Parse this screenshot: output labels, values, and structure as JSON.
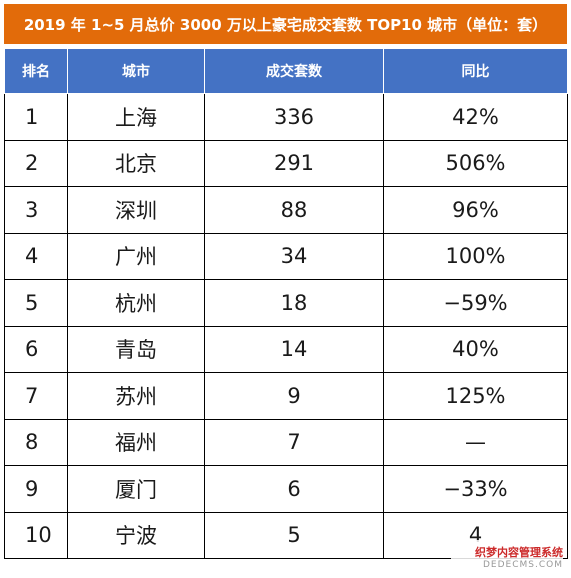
{
  "title": "2019 年 1~5 月总价 3000 万以上豪宅成交套数 TOP10 城市（单位：套）",
  "headers": [
    "排名",
    "城市",
    "成交套数",
    "同比"
  ],
  "rows": [
    {
      "rank": "1",
      "city": "上海",
      "count": "336",
      "yoy": "42%"
    },
    {
      "rank": "2",
      "city": "北京",
      "count": "291",
      "yoy": "506%"
    },
    {
      "rank": "3",
      "city": "深圳",
      "count": "88",
      "yoy": "96%"
    },
    {
      "rank": "4",
      "city": "广州",
      "count": "34",
      "yoy": "100%"
    },
    {
      "rank": "5",
      "city": "杭州",
      "count": "18",
      "yoy": "−59%"
    },
    {
      "rank": "6",
      "city": "青岛",
      "count": "14",
      "yoy": "40%"
    },
    {
      "rank": "7",
      "city": "苏州",
      "count": "9",
      "yoy": "125%"
    },
    {
      "rank": "8",
      "city": "福州",
      "count": "7",
      "yoy": "—"
    },
    {
      "rank": "9",
      "city": "厦门",
      "count": "6",
      "yoy": "−33%"
    },
    {
      "rank": "10",
      "city": "宁波",
      "count": "5",
      "yoy": "4"
    }
  ],
  "watermark": {
    "line1": "织梦内容管理系统",
    "line2": "DEDECMS.COM"
  },
  "colors": {
    "title_bg": "#e26b0a",
    "header_bg": "#4472c4"
  }
}
